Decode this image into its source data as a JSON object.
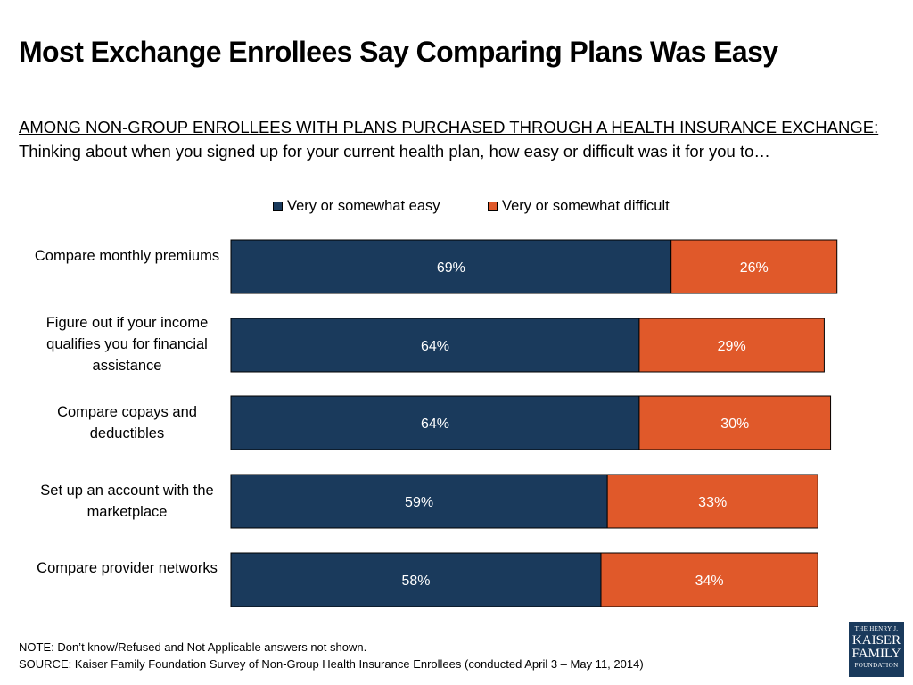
{
  "title": "Most Exchange Enrollees Say Comparing Plans Was Easy",
  "subtitle_lead": "AMONG NON-GROUP ENROLLEES WITH PLANS PURCHASED THROUGH A HEALTH INSURANCE EXCHANGE:",
  "subtitle_question": "Thinking about when you signed up for your current health plan, how easy or difficult was it for you to…",
  "colors": {
    "easy": "#1a3a5c",
    "difficult": "#e0592a"
  },
  "chart_data": {
    "type": "bar",
    "orientation": "horizontal",
    "stacked": true,
    "categories": [
      "Compare monthly premiums",
      "Figure out if your income qualifies you for financial assistance",
      "Compare copays and deductibles",
      "Set up an account with the marketplace",
      "Compare provider networks"
    ],
    "series": [
      {
        "name": "Very or somewhat easy",
        "values": [
          69,
          64,
          64,
          59,
          58
        ],
        "labels": [
          "69%",
          "64%",
          "64%",
          "59%",
          "58%"
        ]
      },
      {
        "name": "Very or somewhat difficult",
        "values": [
          26,
          29,
          30,
          33,
          34
        ],
        "labels": [
          "26%",
          "29%",
          "30%",
          "33%",
          "34%"
        ]
      }
    ],
    "xlim": [
      0,
      100
    ],
    "legend": "top-center",
    "grid": false
  },
  "note": "NOTE: Don’t know/Refused and Not Applicable answers not shown.",
  "source": "SOURCE: Kaiser Family Foundation Survey of Non-Group Health Insurance Enrollees (conducted April 3 – May 11, 2014)",
  "logo": {
    "line1": "THE HENRY J.",
    "line2": "KAISER",
    "line3": "FAMILY",
    "line4": "FOUNDATION"
  }
}
